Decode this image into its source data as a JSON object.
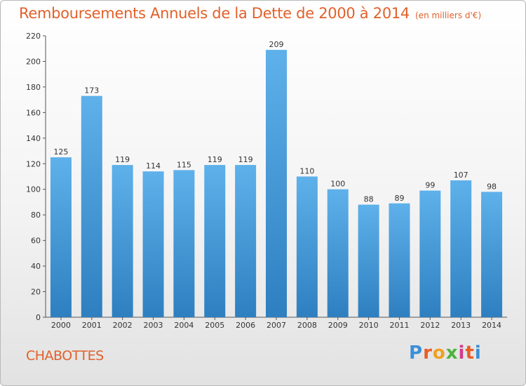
{
  "chart_data": {
    "type": "bar",
    "title": "Remboursements Annuels de la Dette de 2000 à 2014",
    "subtitle": "(en milliers d'€)",
    "categories": [
      "2000",
      "2001",
      "2002",
      "2003",
      "2004",
      "2005",
      "2006",
      "2007",
      "2008",
      "2009",
      "2010",
      "2011",
      "2012",
      "2013",
      "2014"
    ],
    "values": [
      125,
      173,
      119,
      114,
      115,
      119,
      119,
      209,
      110,
      100,
      88,
      89,
      99,
      107,
      98
    ],
    "xlabel": "",
    "ylabel": "",
    "ylim": [
      0,
      220
    ],
    "yticks": [
      0,
      20,
      40,
      60,
      80,
      100,
      120,
      140,
      160,
      180,
      200,
      220
    ],
    "grid": false,
    "legend": "none",
    "data_labels": true,
    "colors": {
      "bar_top": "#5eb1ea",
      "bar_bottom": "#2e7fc0",
      "title": "#e2602a"
    }
  },
  "footer": {
    "place": "CHABOTTES",
    "logo_letters": [
      "P",
      "r",
      "o",
      "x",
      "i",
      "t",
      "i"
    ],
    "logo_colors": [
      "#3b8fd6",
      "#e85d25",
      "#f0a020",
      "#4db33d",
      "#d33a8a",
      "#e85d25",
      "#3b8fd6"
    ]
  }
}
